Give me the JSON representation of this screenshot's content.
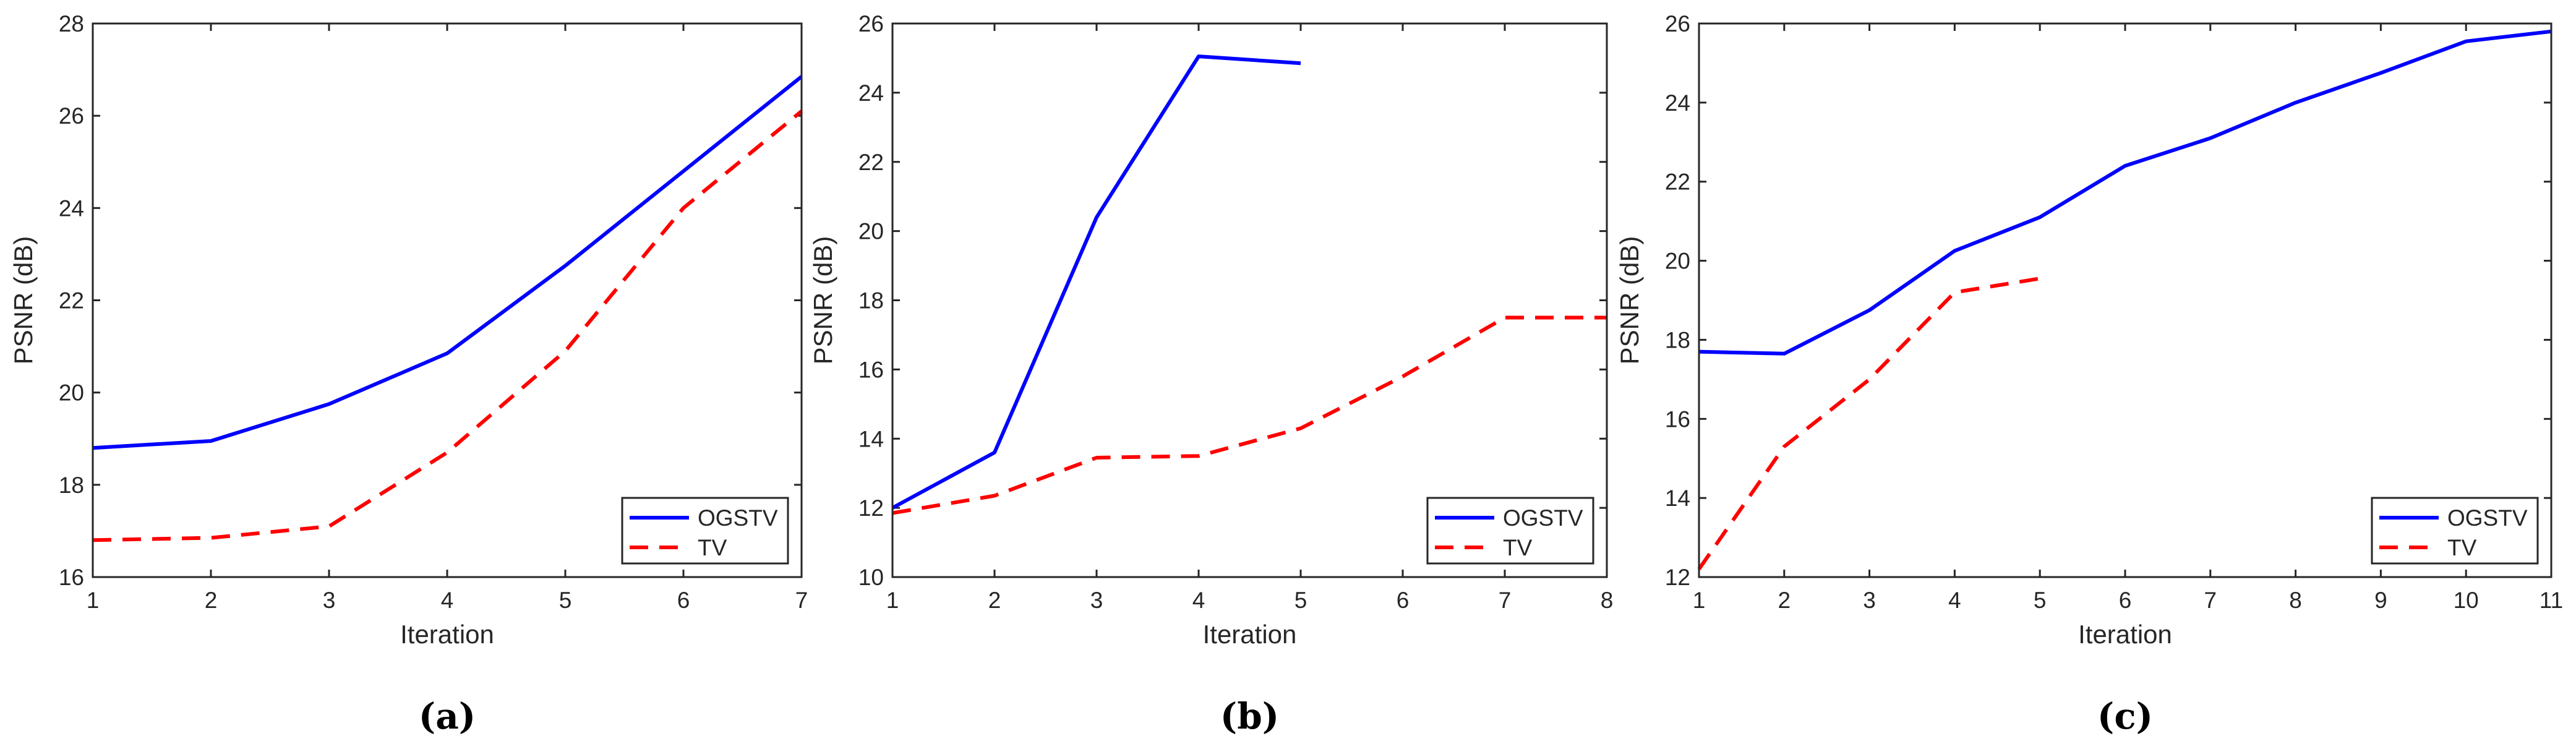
{
  "colors": {
    "ogstv": "#0000ff",
    "tv": "#ff0000",
    "axis": "#262626"
  },
  "chart_data": [
    {
      "type": "line",
      "caption": "(a)",
      "xlabel": "Iteration",
      "ylabel": "PSNR (dB)",
      "xlim": [
        1,
        7
      ],
      "ylim": [
        16,
        28
      ],
      "xticks": [
        1,
        2,
        3,
        4,
        5,
        6,
        7
      ],
      "yticks": [
        16,
        18,
        20,
        22,
        24,
        26,
        28
      ],
      "legend_position": "bottom-right",
      "series": [
        {
          "name": "OGSTV",
          "style": "solid",
          "x": [
            1,
            2,
            3,
            4,
            5,
            6,
            7
          ],
          "y": [
            18.8,
            18.95,
            19.75,
            20.85,
            22.75,
            24.8,
            26.85
          ]
        },
        {
          "name": "TV",
          "style": "dashed",
          "x": [
            1,
            2,
            3,
            4,
            5,
            6,
            7
          ],
          "y": [
            16.8,
            16.85,
            17.1,
            18.7,
            20.9,
            24.0,
            26.1
          ]
        }
      ]
    },
    {
      "type": "line",
      "caption": "(b)",
      "xlabel": "Iteration",
      "ylabel": "PSNR (dB)",
      "xlim": [
        1,
        8
      ],
      "ylim": [
        10,
        26
      ],
      "xticks": [
        1,
        2,
        3,
        4,
        5,
        6,
        7,
        8
      ],
      "yticks": [
        10,
        12,
        14,
        16,
        18,
        20,
        22,
        24,
        26
      ],
      "legend_position": "bottom-right",
      "series": [
        {
          "name": "OGSTV",
          "style": "solid",
          "x": [
            1,
            2,
            3,
            4,
            5
          ],
          "y": [
            12.0,
            13.6,
            20.4,
            25.05,
            24.85
          ]
        },
        {
          "name": "TV",
          "style": "dashed",
          "x": [
            1,
            2,
            3,
            4,
            5,
            6,
            7,
            8
          ],
          "y": [
            11.85,
            12.35,
            13.45,
            13.5,
            14.3,
            15.8,
            17.5,
            17.5
          ]
        }
      ]
    },
    {
      "type": "line",
      "caption": "(c)",
      "xlabel": "Iteration",
      "ylabel": "PSNR (dB)",
      "xlim": [
        1,
        11
      ],
      "ylim": [
        12,
        26
      ],
      "xticks": [
        1,
        2,
        3,
        4,
        5,
        6,
        7,
        8,
        9,
        10,
        11
      ],
      "yticks": [
        12,
        14,
        16,
        18,
        20,
        22,
        24,
        26
      ],
      "legend_position": "bottom-right",
      "series": [
        {
          "name": "OGSTV",
          "style": "solid",
          "x": [
            1,
            2,
            3,
            4,
            5,
            6,
            7,
            8,
            9,
            10,
            11
          ],
          "y": [
            17.7,
            17.65,
            18.75,
            20.25,
            21.1,
            22.4,
            23.1,
            24.0,
            24.75,
            25.55,
            25.8
          ]
        },
        {
          "name": "TV",
          "style": "dashed",
          "x": [
            1,
            2,
            3,
            4,
            5
          ],
          "y": [
            12.2,
            15.3,
            17.0,
            19.2,
            19.55
          ]
        }
      ]
    }
  ]
}
